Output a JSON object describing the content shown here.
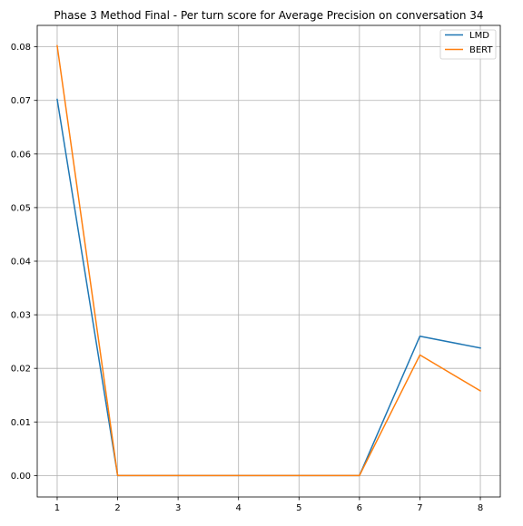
{
  "chart_data": {
    "type": "line",
    "title": "Phase 3 Method Final - Per turn score for Average Precision on conversation 34",
    "xlabel": "",
    "ylabel": "",
    "x": [
      1,
      2,
      3,
      4,
      5,
      6,
      7,
      8
    ],
    "xticks": [
      "1",
      "2",
      "3",
      "4",
      "5",
      "6",
      "7",
      "8"
    ],
    "yticks": [
      "0.00",
      "0.01",
      "0.02",
      "0.03",
      "0.04",
      "0.05",
      "0.06",
      "0.07",
      "0.08"
    ],
    "xlim": [
      0.67,
      8.33
    ],
    "ylim": [
      -0.004,
      0.084
    ],
    "grid": true,
    "legend": "top-right",
    "series": [
      {
        "name": "LMD",
        "color": "#1f77b4",
        "values": [
          0.0702,
          0.0,
          0.0,
          0.0,
          0.0,
          0.0,
          0.026,
          0.0238
        ]
      },
      {
        "name": "BERT",
        "color": "#ff7f0e",
        "values": [
          0.0802,
          0.0,
          0.0,
          0.0,
          0.0,
          0.0,
          0.0225,
          0.0158
        ]
      }
    ]
  }
}
